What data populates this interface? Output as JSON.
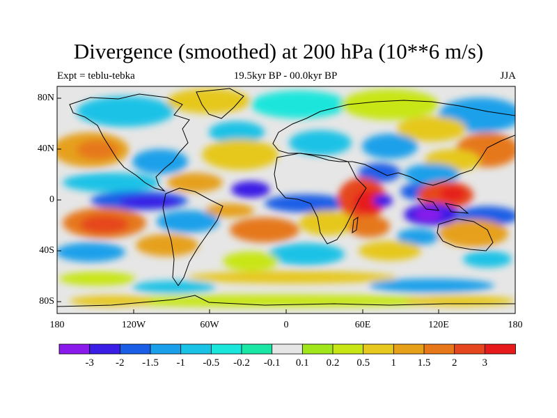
{
  "title": "Divergence (smoothed) at 200 hPa (10**6 m/s)",
  "subtitle_left": "Expt = teblu-tebka",
  "subtitle_center": "19.5kyr BP - 00.0kyr BP",
  "subtitle_right": "JJA",
  "lat_labels": [
    "80N",
    "40N",
    "0",
    "40S",
    "80S"
  ],
  "lon_labels": [
    "180",
    "120W",
    "60W",
    "0",
    "60E",
    "120E",
    "180"
  ],
  "colorbar": {
    "colors": [
      "#8a1aeb",
      "#3a1ee6",
      "#1a5ee6",
      "#1aa0ea",
      "#1ac2e6",
      "#1ae6dc",
      "#1ae6a6",
      "#e6e6e6",
      "#a0e61a",
      "#c8e614",
      "#e6c81e",
      "#e6a01a",
      "#e6781a",
      "#e6461e",
      "#e61a1a"
    ],
    "labels": [
      "-3",
      "-2",
      "-1.5",
      "-1",
      "-0.5",
      "-0.2",
      "-0.1",
      "0.1",
      "0.2",
      "0.5",
      "1",
      "1.5",
      "2",
      "3"
    ]
  }
}
